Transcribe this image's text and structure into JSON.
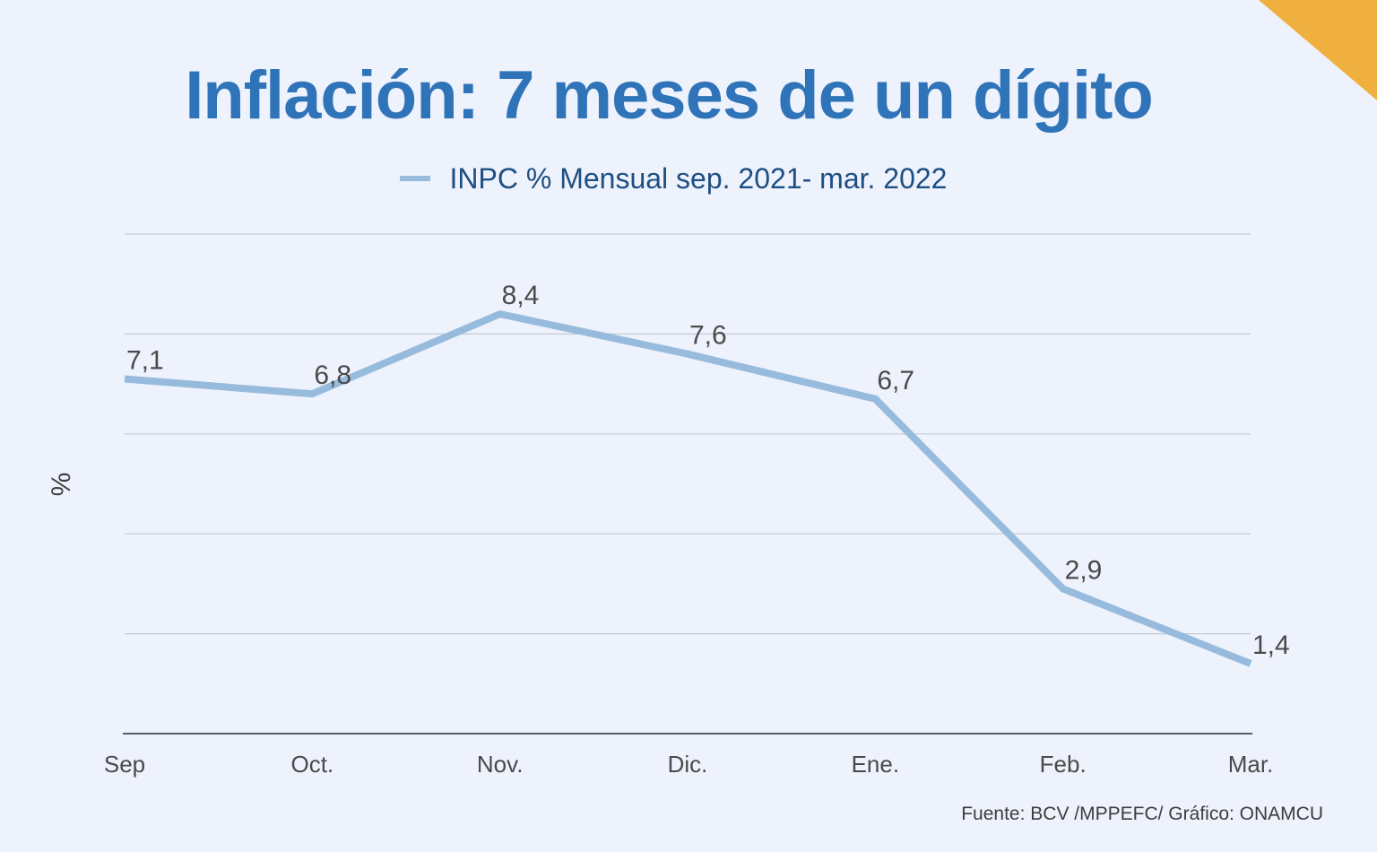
{
  "title": "Inflación: 7 meses de un dígito",
  "legend": {
    "label": "INPC % Mensual sep. 2021- mar. 2022"
  },
  "source": "Fuente: BCV /MPPEFC/ Gráfico: ONAMCU",
  "colors": {
    "background": "#eef2fc",
    "title": "#2f74b9",
    "line": "#97bbdc",
    "corner_accent": "#f0b03f",
    "grid": "#c5cad6",
    "text": "#4a4a4a"
  },
  "chart_data": {
    "type": "line",
    "title": "Inflación: 7 meses de un dígito",
    "xlabel": "",
    "ylabel": "%",
    "categories": [
      "Sep",
      "Oct.",
      "Nov.",
      "Dic.",
      "Ene.",
      "Feb.",
      "Mar."
    ],
    "series": [
      {
        "name": "INPC % Mensual sep. 2021- mar. 2022",
        "values": [
          7.1,
          6.8,
          8.4,
          7.6,
          6.7,
          2.9,
          1.4
        ],
        "labels": [
          "7,1",
          "6,8",
          "8,4",
          "7,6",
          "6,7",
          "2,9",
          "1,4"
        ]
      }
    ],
    "ylim": [
      0,
      10
    ],
    "grid": true,
    "y_tick_labels_visible": false,
    "legend_position": "top"
  }
}
